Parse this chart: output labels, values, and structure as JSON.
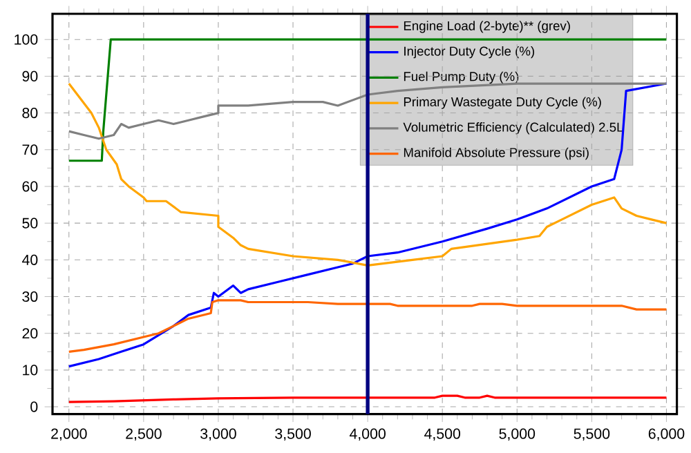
{
  "chart_data": {
    "type": "line",
    "xlim": [
      1890,
      6070
    ],
    "ylim": [
      -2,
      107
    ],
    "xticks": [
      {
        "value": 2000,
        "label": "2,000"
      },
      {
        "value": 2500,
        "label": "2,500"
      },
      {
        "value": 3000,
        "label": "3,000"
      },
      {
        "value": 3500,
        "label": "3,500"
      },
      {
        "value": 4000,
        "label": "4,000"
      },
      {
        "value": 4500,
        "label": "4,500"
      },
      {
        "value": 5000,
        "label": "5,000"
      },
      {
        "value": 5500,
        "label": "5,500"
      },
      {
        "value": 6000,
        "label": "6,000"
      }
    ],
    "yticks": [
      0,
      10,
      20,
      30,
      40,
      50,
      60,
      70,
      80,
      90,
      100
    ],
    "grid": true,
    "legend": "top right",
    "line_style": "solid",
    "marker": "none",
    "ref_lines": [
      {
        "axis": "x",
        "value": 4000,
        "color": "#000080"
      }
    ],
    "series": [
      {
        "name": "Engine Load (2-byte)** (grev)",
        "color": "#ff0000",
        "x": [
          2000,
          2300,
          2700,
          3000,
          3500,
          4000,
          4450,
          4500,
          4600,
          4650,
          4750,
          4800,
          4850,
          6000
        ],
        "values": [
          1.3,
          1.5,
          2,
          2.3,
          2.5,
          2.5,
          2.5,
          3,
          3,
          2.5,
          2.5,
          3,
          2.5,
          2.5
        ]
      },
      {
        "name": "Injector Duty Cycle (%)",
        "color": "#0000ff",
        "x": [
          2000,
          2200,
          2350,
          2500,
          2700,
          2800,
          2950,
          2970,
          3000,
          3100,
          3150,
          3200,
          3400,
          3600,
          3800,
          3900,
          4000,
          4200,
          4500,
          4800,
          5000,
          5200,
          5500,
          5650,
          5700,
          5730,
          6000
        ],
        "values": [
          11,
          13,
          15,
          17,
          22,
          25,
          27,
          31,
          30,
          33,
          31,
          32,
          34,
          36,
          38,
          39,
          41,
          42,
          45,
          48.5,
          51,
          54,
          60,
          62,
          70,
          86,
          88
        ]
      },
      {
        "name": "Fuel Pump Duty (%)",
        "color": "#008000",
        "x": [
          2000,
          2220,
          2230,
          2260,
          2280,
          6000
        ],
        "values": [
          67,
          67,
          75,
          90,
          100,
          100
        ]
      },
      {
        "name": "Primary Wastegate Duty Cycle (%)",
        "color": "#ffa500",
        "x": [
          2000,
          2150,
          2200,
          2250,
          2320,
          2350,
          2400,
          2500,
          2520,
          2650,
          2750,
          3000,
          3000,
          3100,
          3150,
          3200,
          3500,
          3800,
          4000,
          4300,
          4500,
          4560,
          5000,
          5150,
          5200,
          5300,
          5500,
          5650,
          5700,
          5800,
          5900,
          6000
        ],
        "values": [
          88,
          80,
          76,
          70,
          66,
          62,
          60,
          57,
          56,
          56,
          53,
          52,
          49,
          46,
          44,
          43,
          41,
          40,
          38.5,
          40,
          41,
          43,
          45.5,
          46.5,
          49,
          51,
          55,
          57,
          54,
          52,
          51,
          50
        ]
      },
      {
        "name": "Volumetric Efficiency (Calculated) 2.5L",
        "color": "#808080",
        "x": [
          2000,
          2100,
          2200,
          2300,
          2350,
          2400,
          2500,
          2600,
          2700,
          2800,
          2900,
          3000,
          3000,
          3200,
          3500,
          3700,
          3800,
          4000,
          4200,
          4500,
          5000,
          5500,
          6000
        ],
        "values": [
          75,
          74,
          73,
          74,
          77,
          76,
          77,
          78,
          77,
          78,
          79,
          80,
          82,
          82,
          83,
          83,
          82,
          85,
          86,
          87,
          88,
          88,
          88
        ]
      },
      {
        "name": "Manifold Absolute Pressure (psi)",
        "color": "#ff6600",
        "x": [
          2000,
          2100,
          2300,
          2500,
          2600,
          2700,
          2800,
          2950,
          2960,
          3000,
          3150,
          3200,
          3600,
          3800,
          4000,
          4150,
          4200,
          4700,
          4750,
          4900,
          5000,
          5700,
          5800,
          6000
        ],
        "values": [
          15,
          15.5,
          17,
          19,
          20,
          22,
          24,
          25.5,
          28.5,
          29,
          29,
          28.5,
          28.5,
          28,
          28,
          28,
          27.5,
          27.5,
          28,
          28,
          27.5,
          27.5,
          26.5,
          26.5
        ]
      }
    ]
  }
}
